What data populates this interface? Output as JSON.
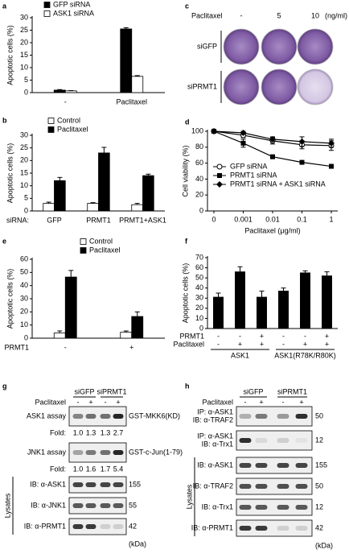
{
  "chart_data": [
    {
      "type": "bar",
      "panel": "a",
      "ylabel": "Apoptotic cells (%)",
      "categories": [
        "-",
        "Paclitaxel"
      ],
      "series": [
        {
          "name": "GFP siRNA",
          "color": "#000000",
          "values": [
            1,
            25.5
          ],
          "errors": [
            0.2,
            0.5
          ]
        },
        {
          "name": "ASK1 siRNA",
          "color": "#ffffff",
          "values": [
            0.7,
            6.5
          ],
          "errors": [
            0.1,
            0.3
          ]
        }
      ],
      "ylim": [
        0,
        30
      ],
      "yticks": [
        0,
        5,
        10,
        15,
        20,
        25,
        30
      ],
      "legend": "top-left"
    },
    {
      "type": "bar",
      "panel": "b",
      "ylabel": "Apoptotic cells (%)",
      "xlabel": "siRNA:",
      "categories": [
        "GFP",
        "PRMT1",
        "PRMT1+ASK1"
      ],
      "series": [
        {
          "name": "Control",
          "color": "#ffffff",
          "values": [
            3,
            3,
            2.5
          ],
          "errors": [
            0.5,
            0.3,
            0.5
          ]
        },
        {
          "name": "Paclitaxel",
          "color": "#000000",
          "values": [
            12,
            23,
            14
          ],
          "errors": [
            1.3,
            2.2,
            0.6
          ]
        }
      ],
      "ylim": [
        0,
        30
      ],
      "yticks": [
        0,
        5,
        10,
        15,
        20,
        25,
        30
      ],
      "legend": "top-left"
    },
    {
      "type": "line",
      "panel": "d",
      "ylabel": "Cell viability (%)",
      "xlabel": "Paclitaxel (μg/ml)",
      "categories": [
        "0",
        "0.001",
        "0.01",
        "0.1",
        "1"
      ],
      "series": [
        {
          "name": "GFP siRNA",
          "color": "#000000",
          "marker": "circle",
          "values": [
            100,
            95,
            88,
            83,
            82
          ],
          "errors": [
            0,
            3,
            4,
            5,
            6
          ]
        },
        {
          "name": "PRMT1 siRNA",
          "color": "#000000",
          "marker": "square",
          "values": [
            100,
            85,
            68,
            61,
            56
          ],
          "errors": [
            0,
            5,
            2,
            2,
            1
          ]
        },
        {
          "name": "PRMT1 siRNA + ASK1 siRNA",
          "color": "#000000",
          "marker": "diamond",
          "values": [
            100,
            98,
            90,
            87,
            85
          ],
          "errors": [
            0,
            2,
            3,
            6,
            5
          ]
        }
      ],
      "ylim": [
        0,
        100
      ],
      "yticks": [
        0,
        20,
        40,
        60,
        80,
        100
      ],
      "legend": "bottom-left"
    },
    {
      "type": "bar",
      "panel": "e",
      "ylabel": "Apoptotic cells (%)",
      "xlabel": "PRMT1",
      "categories": [
        "-",
        "+"
      ],
      "series": [
        {
          "name": "Control",
          "color": "#ffffff",
          "values": [
            4,
            4.5
          ],
          "errors": [
            1.5,
            1
          ]
        },
        {
          "name": "Paclitaxel",
          "color": "#000000",
          "values": [
            46.5,
            16.5
          ],
          "errors": [
            5,
            3.5
          ]
        }
      ],
      "ylim": [
        0,
        60
      ],
      "yticks": [
        0,
        10,
        20,
        30,
        40,
        50,
        60
      ],
      "legend": "top-left"
    },
    {
      "type": "bar",
      "panel": "f",
      "ylabel": "Apoptotic cells (%)",
      "series": [
        {
          "color": "#000000",
          "values": [
            31,
            56,
            31,
            37,
            55,
            52
          ],
          "errors": [
            4,
            5,
            6,
            3,
            2,
            4
          ]
        }
      ],
      "rows": [
        {
          "label": "PRMT1",
          "marks": [
            "-",
            "-",
            "+",
            "-",
            "-",
            "+"
          ]
        },
        {
          "label": "Paclitaxel",
          "marks": [
            "-",
            "+",
            "+",
            "-",
            "+",
            "+"
          ]
        }
      ],
      "groups": [
        "ASK1",
        "ASK1(R78K/R80K)"
      ],
      "ylim": [
        0,
        70
      ],
      "yticks": [
        0,
        10,
        20,
        30,
        40,
        50,
        60,
        70
      ]
    }
  ],
  "blots": [
    {
      "panel": "c",
      "treatment": "Paclitaxel",
      "doses": [
        "-",
        "5",
        "10"
      ],
      "unit": "(ng/ml)",
      "rows": [
        "siGFP",
        "siPRMT1"
      ]
    },
    {
      "panel": "g",
      "groups": [
        "siGFP",
        "siPRMT1"
      ],
      "treatment": "Paclitaxel",
      "lanes": [
        "-",
        "+",
        "-",
        "+"
      ],
      "assays": [
        {
          "label": "ASK1 assay",
          "substrate": "GST-MKK6(KD)",
          "fold_label": "Fold:",
          "fold": [
            "1.0",
            "1.3",
            "1.3",
            "2.7"
          ]
        },
        {
          "label": "JNK1 assay",
          "substrate": "GST-c-Jun(1-79)",
          "fold_label": "Fold:",
          "fold": [
            "1.0",
            "1.6",
            "1.7",
            "5.4"
          ]
        }
      ],
      "lysates_label": "Lysates",
      "lysates": [
        {
          "label": "IB: α-ASK1",
          "kda": "155"
        },
        {
          "label": "IB: α-JNK1",
          "kda": "55"
        },
        {
          "label": "IB: α-PRMT1",
          "kda": "42"
        }
      ],
      "kda_unit": "(kDa)"
    },
    {
      "panel": "h",
      "groups": [
        "siGFP",
        "siPRMT1"
      ],
      "treatment": "Paclitaxel",
      "lanes": [
        "-",
        "+",
        "-",
        "+"
      ],
      "ip_rows": [
        {
          "ip": "IP: α-ASK1",
          "ib": "IB: α-TRAF2",
          "kda": "50"
        },
        {
          "ip": "IP: α-ASK1",
          "ib": "IB: α-Trx1",
          "kda": "12"
        }
      ],
      "lysates_label": "Lysates",
      "lysates": [
        {
          "label": "IB: α-ASK1",
          "kda": "155"
        },
        {
          "label": "IB: α-TRAF2",
          "kda": "50"
        },
        {
          "label": "IB: α-Trx1",
          "kda": "12"
        },
        {
          "label": "IB: α-PRMT1",
          "kda": "42"
        }
      ],
      "kda_unit": "(kDa)"
    }
  ]
}
